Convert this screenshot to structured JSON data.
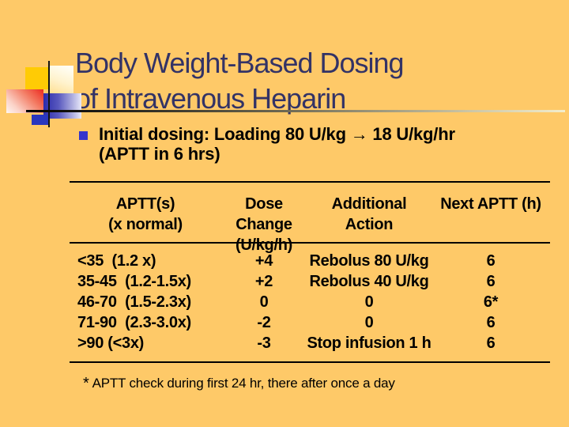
{
  "slide": {
    "colors": {
      "background": "#FEC968",
      "title_navy": "#333366",
      "bullet_blue": "#3333CC",
      "text_black": "#000000",
      "decor_yellow": "#FFCB05",
      "decor_red": "#EC2B20",
      "decor_blue": "#2B2BAB"
    }
  },
  "title": {
    "line1": "Body Weight-Based Dosing",
    "line2": "of Intravenous Heparin"
  },
  "bullet": {
    "line1": "Initial dosing: Loading 80 U/kg → 18 U/kg/hr",
    "line2": "(APTT in 6 hrs)"
  },
  "table": {
    "headers": [
      {
        "line1": "APTT(s)",
        "line2": "(x normal)"
      },
      {
        "line1": "Dose Change",
        "line2": "(U/kg/h)"
      },
      {
        "line1": "Additional",
        "line2": "Action"
      },
      {
        "line1": "Next APTT (h)",
        "line2": ""
      }
    ],
    "rows": [
      [
        "<35  (1.2 x)",
        "+4",
        "Rebolus 80 U/kg",
        "6"
      ],
      [
        "35-45  (1.2-1.5x)",
        "+2",
        "Rebolus 40 U/kg",
        "6"
      ],
      [
        "46-70  (1.5-2.3x)",
        "0",
        "0",
        "6*"
      ],
      [
        "71-90  (2.3-3.0x)",
        "-2",
        "0",
        "6"
      ],
      [
        ">90 (<3x)",
        "-3",
        "Stop infusion 1 h",
        "6"
      ]
    ]
  },
  "footnote": {
    "symbol": "*",
    "text": "APTT check during first 24 hr, there after once a day"
  }
}
